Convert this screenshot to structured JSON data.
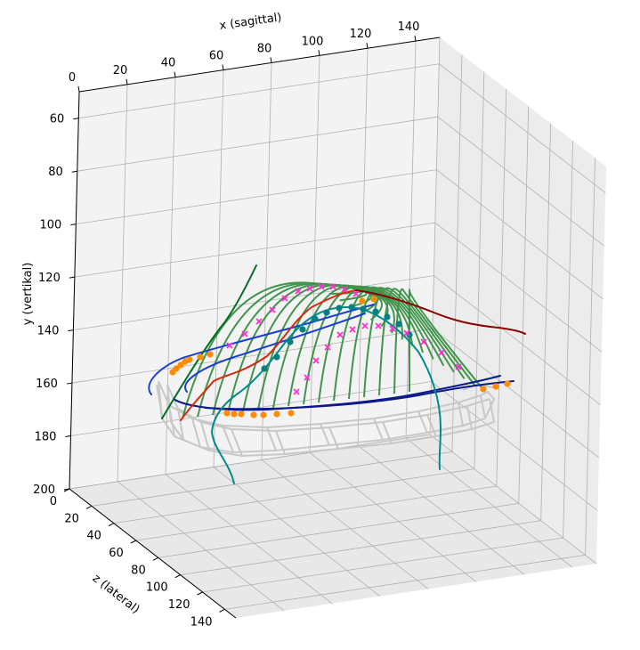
{
  "chart_data": {
    "type": "3d-line-scatter",
    "title": "",
    "axes": {
      "x": {
        "label": "x (sagittal)",
        "ticks": [
          "0",
          "20",
          "40",
          "60",
          "80",
          "100",
          "120",
          "140"
        ],
        "range": [
          0,
          150
        ]
      },
      "y": {
        "label": "y (vertikal)",
        "ticks": [
          "60",
          "80",
          "100",
          "120",
          "140",
          "160",
          "180",
          "200"
        ],
        "range": [
          50,
          200
        ],
        "inverted": true
      },
      "z": {
        "label": "z (lateral)",
        "ticks": [
          "0",
          "20",
          "40",
          "60",
          "80",
          "100",
          "120",
          "140"
        ],
        "range": [
          0,
          150
        ]
      }
    },
    "grid": true,
    "legend": "none",
    "series": [
      {
        "role": "mesh-wireframe",
        "color": "#c8c8c8"
      },
      {
        "role": "arcs",
        "color": "#2e8b3a",
        "count": 16
      },
      {
        "role": "curve",
        "color": "#0a1a8a"
      },
      {
        "role": "curve",
        "color": "#1a3ecf"
      },
      {
        "role": "curve",
        "color": "#d42a0a"
      },
      {
        "role": "curve",
        "color": "#006f1f"
      },
      {
        "role": "curve",
        "color": "#8b0000"
      },
      {
        "role": "curve",
        "color": "#008b8b"
      },
      {
        "role": "markers-circle",
        "color": "#ff8c00"
      },
      {
        "role": "markers-circle",
        "color": "#008080"
      },
      {
        "role": "markers-x",
        "color": "#ff2fd4"
      }
    ]
  },
  "colors": {
    "pane_back": "#f3f3f3",
    "pane_side": "#ececec",
    "pane_floor": "#e8e8e8",
    "grid": "#b0b0b0",
    "axis": "#000000"
  }
}
